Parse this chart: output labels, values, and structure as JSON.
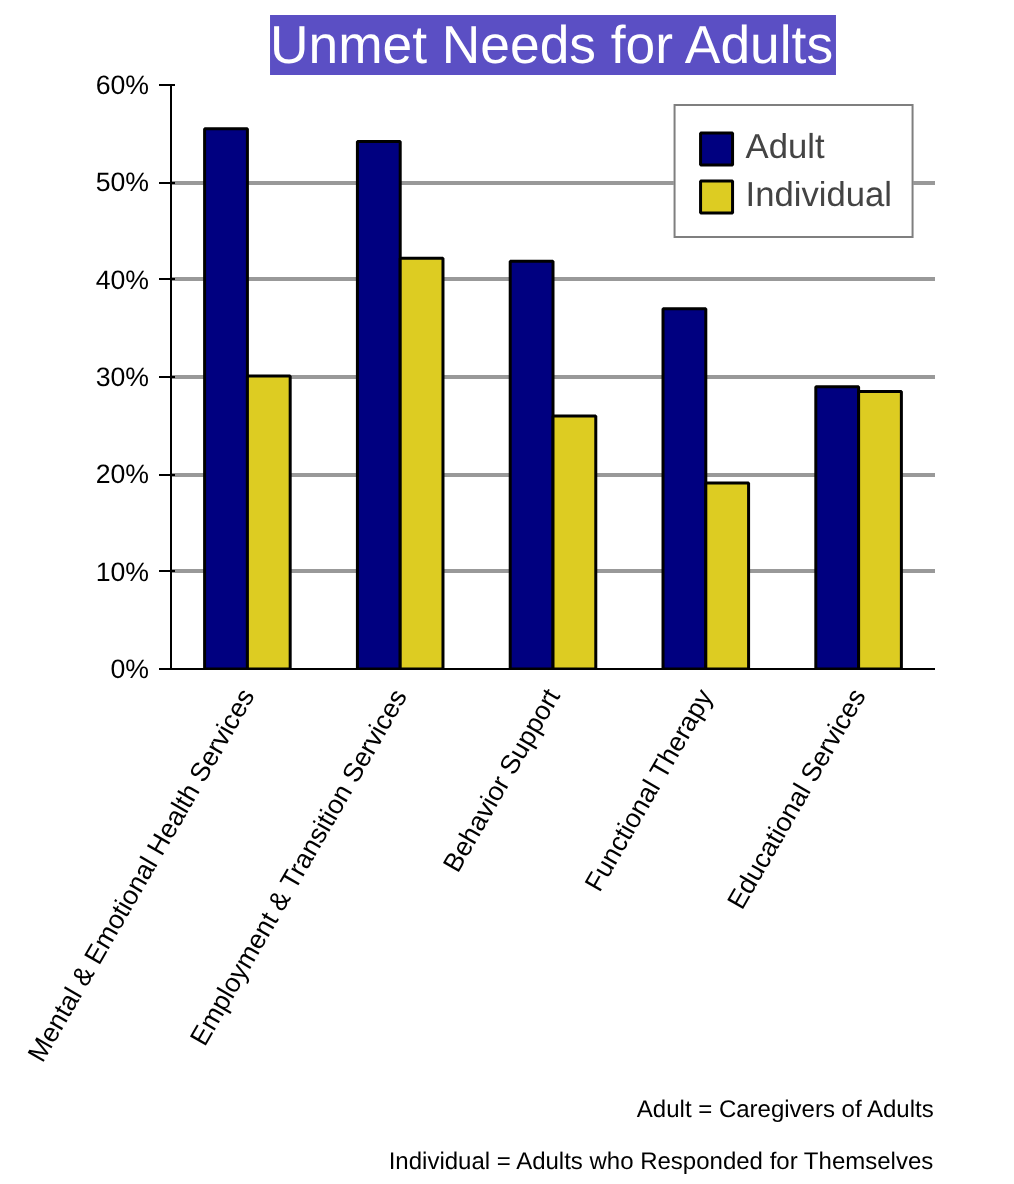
{
  "chart_data": {
    "type": "bar",
    "title": "Unmet Needs for Adults",
    "categories": [
      "Mental & Emotional Health Services",
      "Employment & Transition Services",
      "Behavior Support",
      "Functional Therapy",
      "Educational Services"
    ],
    "series": [
      {
        "name": "Adult",
        "color": "#000080",
        "values": [
          55.5,
          54.2,
          41.9,
          37.0,
          29.0
        ]
      },
      {
        "name": "Individual",
        "color": "#ddcc22",
        "values": [
          30.1,
          42.2,
          26.0,
          19.1,
          28.5
        ]
      }
    ],
    "ylim": [
      0,
      60
    ],
    "yticks": [
      {
        "value": 0,
        "label": "0%"
      },
      {
        "value": 10,
        "label": "10%"
      },
      {
        "value": 20,
        "label": "20%"
      },
      {
        "value": 30,
        "label": "30%"
      },
      {
        "value": 40,
        "label": "40%"
      },
      {
        "value": 50,
        "label": "50%"
      },
      {
        "value": 60,
        "label": "60%"
      }
    ],
    "grid": "y",
    "legend": "top right",
    "annotations": [
      "Adult = Caregivers of Adults",
      "Individual = Adults who Responded for Themselves"
    ]
  }
}
